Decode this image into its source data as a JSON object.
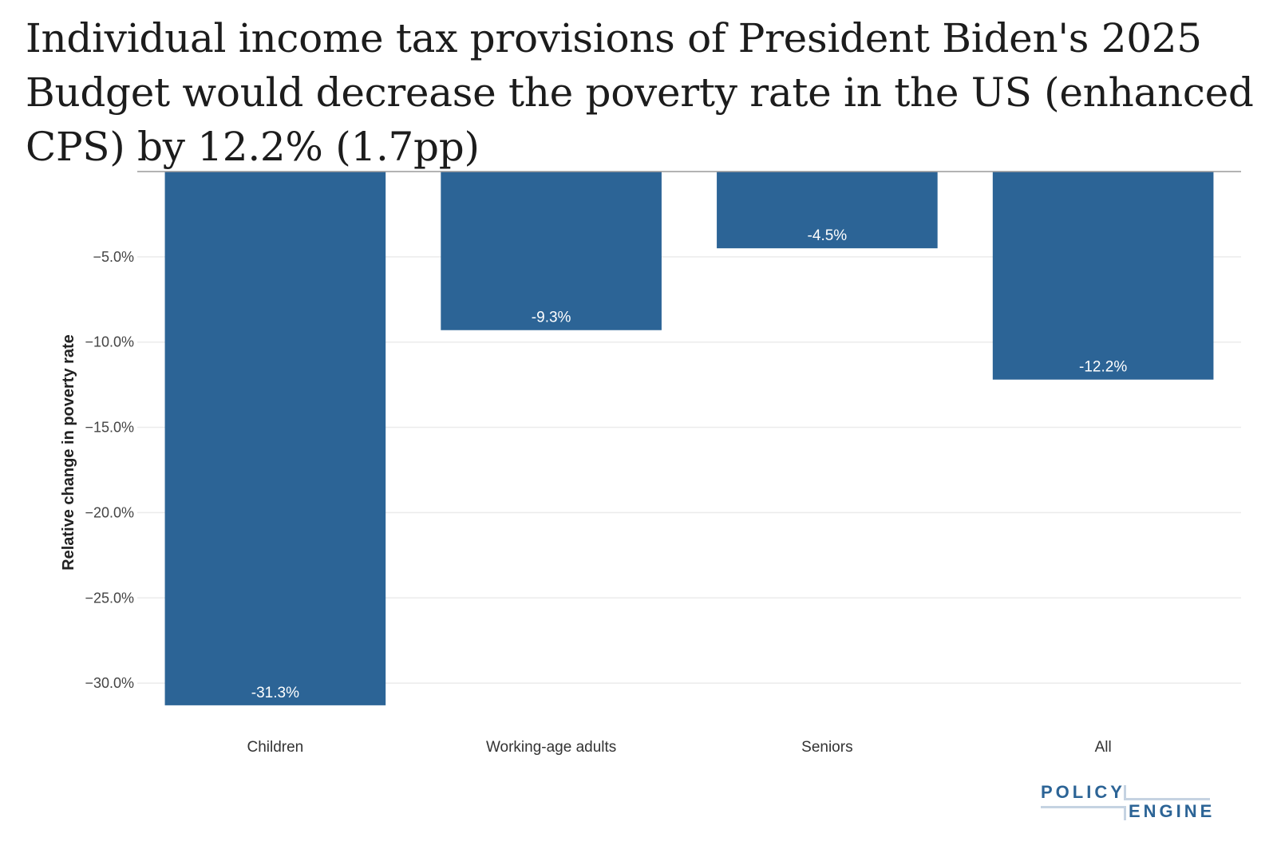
{
  "chart_data": {
    "type": "bar",
    "title": "Individual income tax provisions of President Biden's 2025 Budget would decrease the poverty rate in the US (enhanced CPS) by 12.2% (1.7pp)",
    "xlabel": "",
    "ylabel": "Relative change in poverty rate",
    "categories": [
      "Children",
      "Working-age adults",
      "Seniors",
      "All"
    ],
    "values": [
      -31.3,
      -9.3,
      -4.5,
      -12.2
    ],
    "data_labels": [
      "-31.3%",
      "-9.3%",
      "-4.5%",
      "-12.2%"
    ],
    "ylim": [
      -31.3,
      0
    ],
    "yticks": [
      -5,
      -10,
      -15,
      -20,
      -25,
      -30
    ],
    "ytick_labels": [
      "−5.0%",
      "−10.0%",
      "−15.0%",
      "−20.0%",
      "−25.0%",
      "−30.0%"
    ],
    "grid": true,
    "legend": "none",
    "bar_color": "#2C6496"
  },
  "branding": {
    "logo_line1": "POLICY",
    "logo_line2": "ENGINE",
    "logo_color": "#2C6496"
  }
}
